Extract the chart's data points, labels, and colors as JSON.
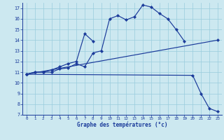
{
  "xlabel": "Graphe des températures (°c)",
  "background_color": "#cce8f0",
  "grid_color": "#99ccdd",
  "line_color": "#1a3a9a",
  "ylim": [
    7,
    17.5
  ],
  "xlim": [
    -0.5,
    23.5
  ],
  "yticks": [
    7,
    8,
    9,
    10,
    11,
    12,
    13,
    14,
    15,
    16,
    17
  ],
  "xticks": [
    0,
    1,
    2,
    3,
    4,
    5,
    6,
    7,
    8,
    9,
    10,
    11,
    12,
    13,
    14,
    15,
    16,
    17,
    18,
    19,
    20,
    21,
    22,
    23
  ],
  "s1x": [
    0,
    1,
    2,
    3,
    4,
    5,
    6,
    7,
    8,
    9,
    10,
    11,
    12,
    13,
    14,
    15,
    16,
    17,
    18,
    19
  ],
  "s1y": [
    10.8,
    11.0,
    11.0,
    11.0,
    11.3,
    11.4,
    11.8,
    11.5,
    12.8,
    13.0,
    16.0,
    16.3,
    15.9,
    16.2,
    17.3,
    17.1,
    16.5,
    16.0,
    15.0,
    13.9
  ],
  "s2x": [
    0,
    1,
    2,
    3,
    4,
    5,
    6,
    7,
    8
  ],
  "s2y": [
    10.8,
    11.0,
    11.0,
    11.2,
    11.5,
    11.8,
    12.0,
    14.6,
    13.9
  ],
  "s3x": [
    0,
    23
  ],
  "s3y": [
    10.8,
    14.0
  ],
  "s4x": [
    0,
    20,
    21,
    22,
    23
  ],
  "s4y": [
    10.8,
    10.7,
    9.0,
    7.6,
    7.3
  ]
}
